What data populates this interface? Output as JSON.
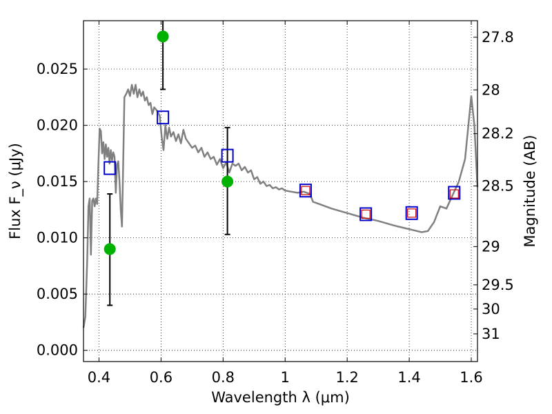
{
  "chart_data": {
    "type": "scatter",
    "xlabel": "Wavelength λ (μm)",
    "ylabel": "Flux F_ν (μJy)",
    "y2label": "Magnitude (AB)",
    "xlim": [
      0.35,
      1.62
    ],
    "ylim": [
      -0.001,
      0.0293
    ],
    "grid": true,
    "x_ticks": [
      0.4,
      0.6,
      0.8,
      1.0,
      1.2,
      1.4,
      1.6
    ],
    "x_tick_labels": [
      "0.4",
      "0.6",
      "0.8",
      "1",
      "1.2",
      "1.4",
      "1.6"
    ],
    "y_ticks": [
      0.0,
      0.005,
      0.01,
      0.015,
      0.02,
      0.025
    ],
    "y_tick_labels": [
      "0.000",
      "0.005",
      "0.010",
      "0.015",
      "0.020",
      "0.025"
    ],
    "y2_ticks": [
      {
        "label": "27.8",
        "flux": 0.02783
      },
      {
        "label": "28",
        "flux": 0.02315
      },
      {
        "label": "28.2",
        "flux": 0.01926
      },
      {
        "label": "28.5",
        "flux": 0.01461
      },
      {
        "label": "29",
        "flux": 0.00922
      },
      {
        "label": "29.5",
        "flux": 0.00582
      },
      {
        "label": "30",
        "flux": 0.00367
      },
      {
        "label": "31",
        "flux": 0.00146
      }
    ],
    "colors": {
      "model": "#808080",
      "observed": "#00b200",
      "errorbar": "#000000",
      "model_band": "#0000cc",
      "model_band_inner": "#cc0000"
    },
    "series": [
      {
        "kind": "line",
        "points": [
          [
            0.35,
            0.002
          ],
          [
            0.356,
            0.003
          ],
          [
            0.362,
            0.008
          ],
          [
            0.366,
            0.0128
          ],
          [
            0.37,
            0.0135
          ],
          [
            0.374,
            0.0085
          ],
          [
            0.378,
            0.0133
          ],
          [
            0.382,
            0.0135
          ],
          [
            0.386,
            0.0128
          ],
          [
            0.39,
            0.0135
          ],
          [
            0.394,
            0.013
          ],
          [
            0.398,
            0.0165
          ],
          [
            0.402,
            0.0197
          ],
          [
            0.406,
            0.0195
          ],
          [
            0.41,
            0.0175
          ],
          [
            0.414,
            0.0185
          ],
          [
            0.418,
            0.017
          ],
          [
            0.422,
            0.0183
          ],
          [
            0.426,
            0.0172
          ],
          [
            0.43,
            0.018
          ],
          [
            0.434,
            0.0166
          ],
          [
            0.438,
            0.0178
          ],
          [
            0.442,
            0.0169
          ],
          [
            0.446,
            0.0176
          ],
          [
            0.45,
            0.0172
          ],
          [
            0.454,
            0.014
          ],
          [
            0.458,
            0.0165
          ],
          [
            0.462,
            0.0168
          ],
          [
            0.466,
            0.015
          ],
          [
            0.47,
            0.0125
          ],
          [
            0.474,
            0.011
          ],
          [
            0.478,
            0.0165
          ],
          [
            0.482,
            0.0225
          ],
          [
            0.488,
            0.0228
          ],
          [
            0.494,
            0.0232
          ],
          [
            0.5,
            0.0226
          ],
          [
            0.506,
            0.0236
          ],
          [
            0.512,
            0.0228
          ],
          [
            0.518,
            0.0236
          ],
          [
            0.524,
            0.0225
          ],
          [
            0.53,
            0.0232
          ],
          [
            0.536,
            0.0226
          ],
          [
            0.542,
            0.023
          ],
          [
            0.548,
            0.0222
          ],
          [
            0.554,
            0.0225
          ],
          [
            0.56,
            0.0218
          ],
          [
            0.566,
            0.022
          ],
          [
            0.572,
            0.021
          ],
          [
            0.578,
            0.0216
          ],
          [
            0.584,
            0.0214
          ],
          [
            0.59,
            0.0212
          ],
          [
            0.596,
            0.0208
          ],
          [
            0.602,
            0.019
          ],
          [
            0.608,
            0.0178
          ],
          [
            0.614,
            0.02
          ],
          [
            0.62,
            0.0188
          ],
          [
            0.626,
            0.0198
          ],
          [
            0.632,
            0.019
          ],
          [
            0.64,
            0.0194
          ],
          [
            0.648,
            0.0186
          ],
          [
            0.656,
            0.0192
          ],
          [
            0.664,
            0.0184
          ],
          [
            0.672,
            0.0196
          ],
          [
            0.68,
            0.0188
          ],
          [
            0.69,
            0.0184
          ],
          [
            0.7,
            0.018
          ],
          [
            0.71,
            0.0182
          ],
          [
            0.72,
            0.0176
          ],
          [
            0.73,
            0.018
          ],
          [
            0.74,
            0.0172
          ],
          [
            0.75,
            0.0176
          ],
          [
            0.76,
            0.017
          ],
          [
            0.77,
            0.0172
          ],
          [
            0.78,
            0.0165
          ],
          [
            0.79,
            0.017
          ],
          [
            0.8,
            0.0162
          ],
          [
            0.81,
            0.0167
          ],
          [
            0.82,
            0.0158
          ],
          [
            0.83,
            0.0166
          ],
          [
            0.84,
            0.0164
          ],
          [
            0.85,
            0.0166
          ],
          [
            0.86,
            0.016
          ],
          [
            0.87,
            0.0163
          ],
          [
            0.88,
            0.0158
          ],
          [
            0.89,
            0.016
          ],
          [
            0.9,
            0.0152
          ],
          [
            0.91,
            0.0154
          ],
          [
            0.92,
            0.0148
          ],
          [
            0.93,
            0.015
          ],
          [
            0.94,
            0.0146
          ],
          [
            0.95,
            0.0147
          ],
          [
            0.96,
            0.0144
          ],
          [
            0.97,
            0.0145
          ],
          [
            0.98,
            0.0143
          ],
          [
            0.99,
            0.0144
          ],
          [
            1.0,
            0.0142
          ],
          [
            1.02,
            0.0141
          ],
          [
            1.04,
            0.014
          ],
          [
            1.06,
            0.0141
          ],
          [
            1.08,
            0.0139
          ],
          [
            1.09,
            0.0132
          ],
          [
            1.1,
            0.0131
          ],
          [
            1.15,
            0.0126
          ],
          [
            1.2,
            0.0122
          ],
          [
            1.25,
            0.0118
          ],
          [
            1.3,
            0.0115
          ],
          [
            1.35,
            0.0111
          ],
          [
            1.38,
            0.0109
          ],
          [
            1.41,
            0.0107
          ],
          [
            1.44,
            0.0105
          ],
          [
            1.46,
            0.0106
          ],
          [
            1.48,
            0.0114
          ],
          [
            1.5,
            0.0128
          ],
          [
            1.52,
            0.0126
          ],
          [
            1.54,
            0.0138
          ],
          [
            1.56,
            0.015
          ],
          [
            1.58,
            0.017
          ],
          [
            1.6,
            0.0226
          ],
          [
            1.61,
            0.02
          ],
          [
            1.62,
            0.0145
          ]
        ]
      },
      {
        "kind": "observed",
        "points": [
          {
            "x": 0.435,
            "y": 0.009,
            "y_low": 0.004,
            "y_high": 0.0139
          },
          {
            "x": 0.606,
            "y": 0.0279,
            "y_low": 0.0232,
            "y_high": 0.03
          },
          {
            "x": 0.814,
            "y": 0.015,
            "y_low": 0.0103,
            "y_high": 0.0198
          }
        ]
      },
      {
        "kind": "model_band",
        "points": [
          {
            "x": 0.435,
            "y": 0.0162
          },
          {
            "x": 0.606,
            "y": 0.0207
          },
          {
            "x": 0.814,
            "y": 0.0173
          },
          {
            "x": 1.066,
            "y": 0.0142
          },
          {
            "x": 1.26,
            "y": 0.0121
          },
          {
            "x": 1.408,
            "y": 0.0122
          },
          {
            "x": 1.545,
            "y": 0.014
          }
        ]
      },
      {
        "kind": "model_band_inner",
        "points": [
          {
            "x": 1.066,
            "y": 0.0142
          },
          {
            "x": 1.26,
            "y": 0.0121
          },
          {
            "x": 1.408,
            "y": 0.0122
          },
          {
            "x": 1.545,
            "y": 0.0139
          }
        ]
      }
    ]
  }
}
